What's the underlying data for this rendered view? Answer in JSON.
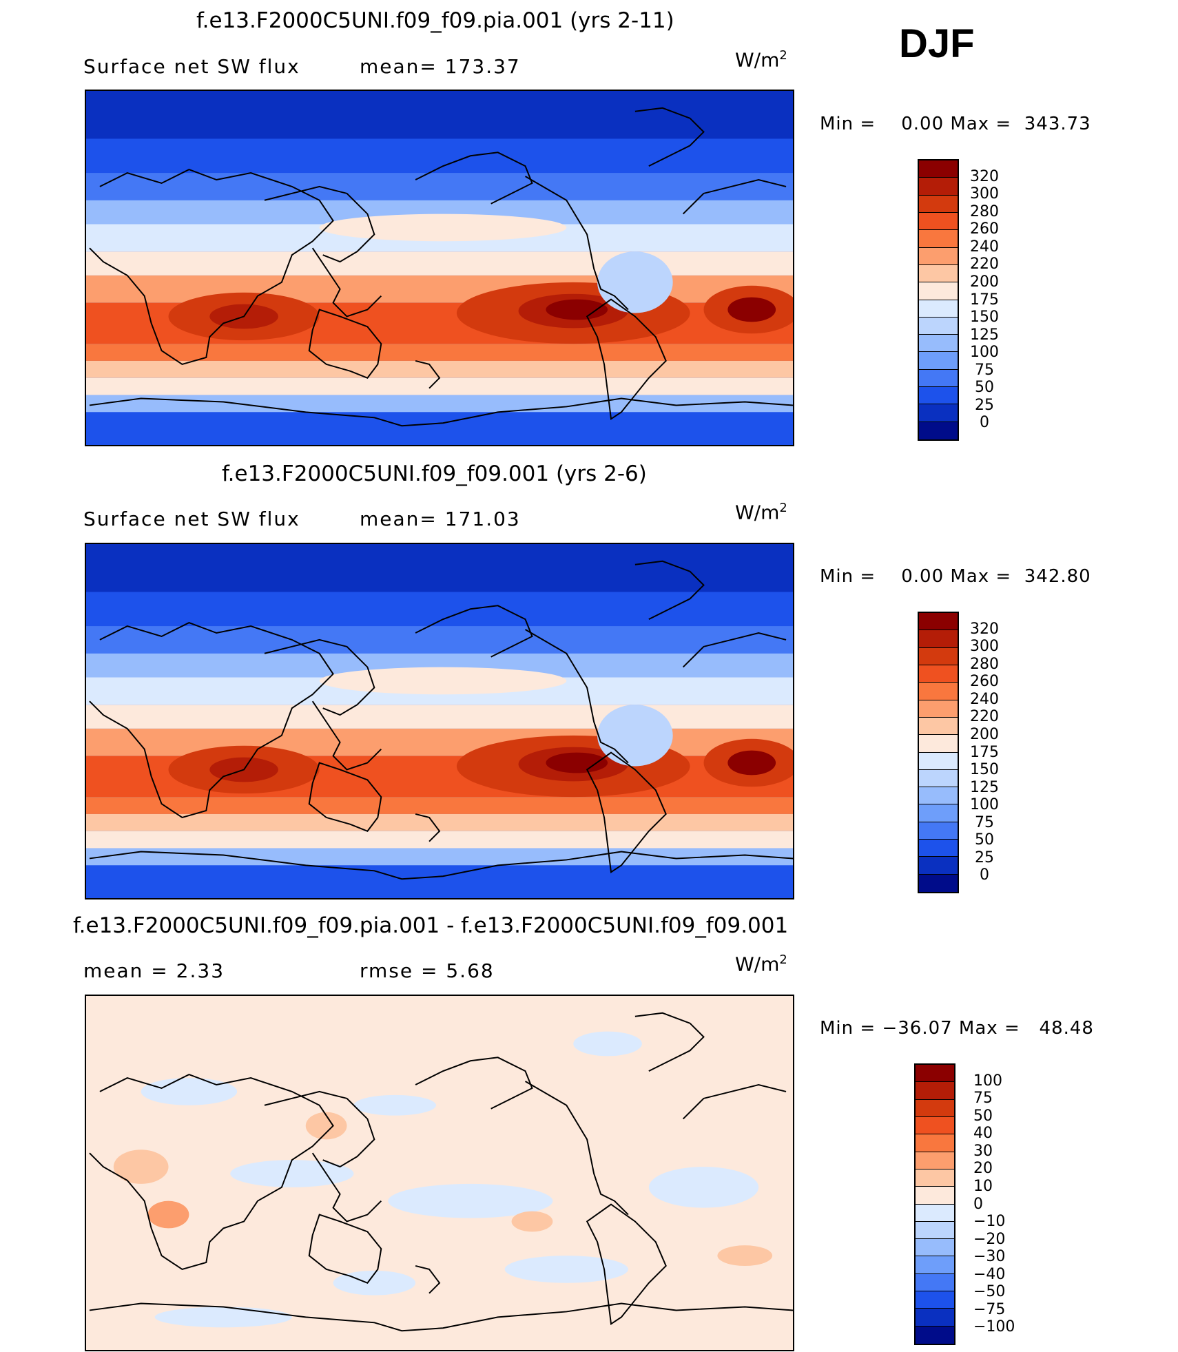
{
  "season": "DJF",
  "panels": [
    {
      "title": "f.e13.F2000C5UNI.f09_f09.pia.001 (yrs 2-11)",
      "left_text": "Surface net SW flux",
      "mid_text": "mean= 173.37",
      "units_base": "W/m",
      "units_exp": "2",
      "minmax": "Min =    0.00 Max =  343.73",
      "type": "abs"
    },
    {
      "title": "f.e13.F2000C5UNI.f09_f09.001 (yrs 2-6)",
      "left_text": "Surface net SW flux",
      "mid_text": "mean= 171.03",
      "units_base": "W/m",
      "units_exp": "2",
      "minmax": "Min =    0.00 Max =  342.80",
      "type": "abs"
    },
    {
      "title": "f.e13.F2000C5UNI.f09_f09.pia.001 - f.e13.F2000C5UNI.f09_f09.001",
      "left_text": "mean =    2.33",
      "mid_text": "rmse =    5.68",
      "units_base": "W/m",
      "units_exp": "2",
      "minmax": "Min = −36.07 Max =   48.48",
      "type": "diff"
    }
  ],
  "colorbars": {
    "abs": {
      "labels": [
        "320",
        "300",
        "280",
        "260",
        "240",
        "220",
        "200",
        "175",
        "150",
        "125",
        "100",
        "75",
        "50",
        "25",
        "0"
      ],
      "colors": [
        "#8b0000",
        "#b41d07",
        "#d33a0e",
        "#ef5120",
        "#f9773e",
        "#fc9e6e",
        "#fdc7a4",
        "#fde9dc",
        "#dbeafe",
        "#bcd5fd",
        "#97bcfc",
        "#6e9efa",
        "#4478f5",
        "#1d52eb",
        "#0a30c0",
        "#000c8a"
      ]
    },
    "diff": {
      "labels": [
        "100",
        "75",
        "50",
        "40",
        "30",
        "20",
        "10",
        "0",
        "−10",
        "−20",
        "−30",
        "−40",
        "−50",
        "−75",
        "−100"
      ],
      "colors": [
        "#8b0000",
        "#b41d07",
        "#d33a0e",
        "#ef5120",
        "#f9773e",
        "#fc9e6e",
        "#fdc7a4",
        "#fde9dc",
        "#dbeafe",
        "#bcd5fd",
        "#97bcfc",
        "#6e9efa",
        "#4478f5",
        "#1d52eb",
        "#0a30c0",
        "#000c8a"
      ]
    }
  }
}
